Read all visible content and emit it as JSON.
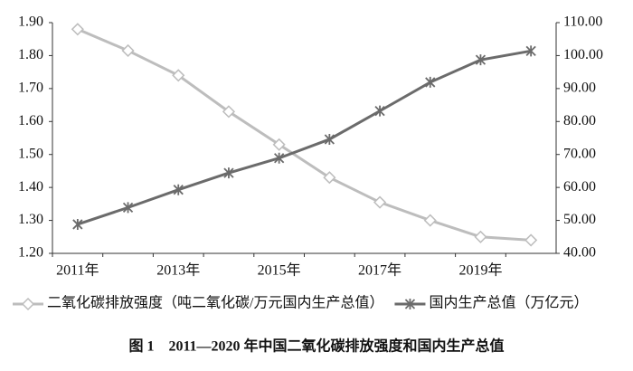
{
  "chart_data": {
    "type": "line",
    "caption": "图 1　2011—2020 年中国二氧化碳排放强度和国内生产总值",
    "categories": [
      "2011年",
      null,
      "2013年",
      null,
      "2015年",
      null,
      "2017年",
      null,
      "2019年",
      null
    ],
    "series": [
      {
        "name": "二氧化碳排放强度（吨二氧化碳/万元国内生产总值）",
        "color": "#bdbdbd",
        "marker": "diamond",
        "axis": "y",
        "values": [
          1.88,
          1.815,
          1.74,
          1.63,
          1.53,
          1.43,
          1.355,
          1.3,
          1.25,
          1.24
        ]
      },
      {
        "name": "国内生产总值（万亿元）",
        "color": "#6b6b6b",
        "marker": "asterisk",
        "axis": "y2",
        "values": [
          48.8,
          53.9,
          59.3,
          64.4,
          68.9,
          74.6,
          83.2,
          91.9,
          98.7,
          101.4
        ]
      }
    ],
    "ylim": [
      1.2,
      1.9
    ],
    "yticks": [
      {
        "value": 1.2,
        "label": "1.20"
      },
      {
        "value": 1.3,
        "label": "1.30"
      },
      {
        "value": 1.4,
        "label": "1.40"
      },
      {
        "value": 1.5,
        "label": "1.50"
      },
      {
        "value": 1.6,
        "label": "1.60"
      },
      {
        "value": 1.7,
        "label": "1.70"
      },
      {
        "value": 1.8,
        "label": "1.80"
      },
      {
        "value": 1.9,
        "label": "1.90"
      }
    ],
    "y2lim": [
      40,
      110
    ],
    "y2ticks": [
      {
        "value": 40,
        "label": "40.00"
      },
      {
        "value": 50,
        "label": "50.00"
      },
      {
        "value": 60,
        "label": "60.00"
      },
      {
        "value": 70,
        "label": "70.00"
      },
      {
        "value": 80,
        "label": "80.00"
      },
      {
        "value": 90,
        "label": "90.00"
      },
      {
        "value": 100,
        "label": "100.00"
      },
      {
        "value": 110,
        "label": "110.00"
      }
    ],
    "grid": false,
    "legend": "bottom"
  }
}
